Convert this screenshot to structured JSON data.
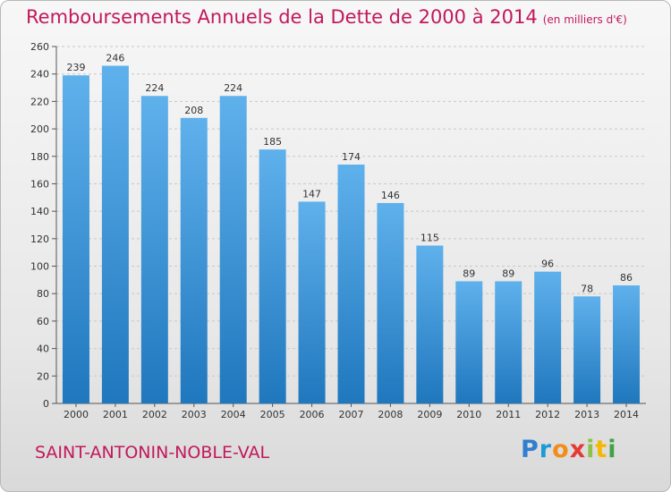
{
  "title": "Remboursements Annuels de la Dette de 2000 à 2014",
  "subtitle": "(en milliers d'€)",
  "city": "SAINT-ANTONIN-NOBLE-VAL",
  "logo_text": "Proxiti",
  "colors": {
    "title": "#c2185b",
    "bar_light": "#5fb1ec",
    "bar_dark": "#1f77bd",
    "label": "#333333"
  },
  "chart_data": {
    "type": "bar",
    "title": "Remboursements Annuels de la Dette de 2000 à 2014",
    "subtitle": "(en milliers d'€)",
    "categories": [
      "2000",
      "2001",
      "2002",
      "2003",
      "2004",
      "2005",
      "2006",
      "2007",
      "2008",
      "2009",
      "2010",
      "2011",
      "2012",
      "2013",
      "2014"
    ],
    "values": [
      239,
      246,
      224,
      208,
      224,
      185,
      147,
      174,
      146,
      115,
      89,
      89,
      96,
      78,
      86
    ],
    "ylim": [
      0,
      260
    ],
    "yticks": [
      0,
      20,
      40,
      60,
      80,
      100,
      120,
      140,
      160,
      180,
      200,
      220,
      240,
      260
    ],
    "grid": "horizontal dashed",
    "data_labels": true
  }
}
